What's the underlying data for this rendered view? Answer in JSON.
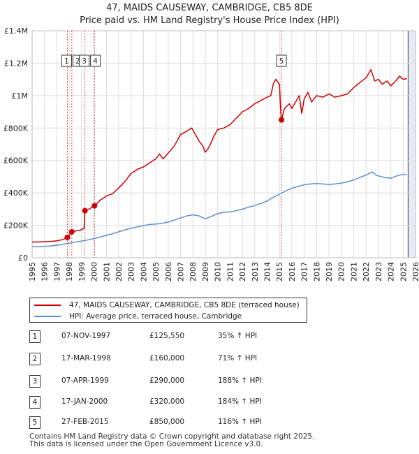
{
  "title": "47, MAIDS CAUSEWAY, CAMBRIDGE, CB5 8DE",
  "subtitle": "Price paid vs. HM Land Registry's House Price Index (HPI)",
  "colors": {
    "property": "#cc0000",
    "hpi": "#5b8fd0",
    "shade": "#e8eef8",
    "grid": "#dddddd",
    "marker": "#cc0000"
  },
  "chart_data": {
    "type": "line",
    "title": "47, MAIDS CAUSEWAY, CAMBRIDGE, CB5 8DE",
    "xlim": [
      1995,
      2026
    ],
    "ylim": [
      0,
      1400000
    ],
    "x_ticks": [
      1995,
      1996,
      1997,
      1998,
      1999,
      2000,
      2001,
      2002,
      2003,
      2004,
      2005,
      2006,
      2007,
      2008,
      2009,
      2010,
      2011,
      2012,
      2013,
      2014,
      2015,
      2016,
      2017,
      2018,
      2019,
      2020,
      2021,
      2022,
      2023,
      2024,
      2025,
      2026
    ],
    "y_ticks": [
      {
        "value": 0,
        "label": "£0"
      },
      {
        "value": 200000,
        "label": "£200K"
      },
      {
        "value": 400000,
        "label": "£400K"
      },
      {
        "value": 600000,
        "label": "£600K"
      },
      {
        "value": 800000,
        "label": "£800K"
      },
      {
        "value": 1000000,
        "label": "£1M"
      },
      {
        "value": 1200000,
        "label": "£1.2M"
      },
      {
        "value": 1400000,
        "label": "£1.4M"
      }
    ],
    "shaded_future_from": 2025.4,
    "series": [
      {
        "name": "47, MAIDS CAUSEWAY, CAMBRIDGE, CB5 8DE (terraced house)",
        "color": "#cc0000",
        "points": [
          [
            1995.0,
            97000
          ],
          [
            1995.5,
            97000
          ],
          [
            1996.0,
            99000
          ],
          [
            1996.5,
            101000
          ],
          [
            1997.0,
            104000
          ],
          [
            1997.5,
            113000
          ],
          [
            1997.85,
            125550
          ],
          [
            1998.0,
            140000
          ],
          [
            1998.21,
            160000
          ],
          [
            1998.5,
            165000
          ],
          [
            1998.9,
            170000
          ],
          [
            1999.0,
            175000
          ],
          [
            1999.2,
            180000
          ],
          [
            1999.27,
            290000
          ],
          [
            1999.6,
            300000
          ],
          [
            2000.04,
            320000
          ],
          [
            2000.5,
            355000
          ],
          [
            2001.0,
            380000
          ],
          [
            2001.5,
            395000
          ],
          [
            2002.0,
            430000
          ],
          [
            2002.5,
            470000
          ],
          [
            2003.0,
            520000
          ],
          [
            2003.5,
            545000
          ],
          [
            2004.0,
            560000
          ],
          [
            2004.5,
            585000
          ],
          [
            2005.0,
            610000
          ],
          [
            2005.3,
            640000
          ],
          [
            2005.6,
            610000
          ],
          [
            2006.0,
            645000
          ],
          [
            2006.5,
            690000
          ],
          [
            2007.0,
            760000
          ],
          [
            2007.5,
            780000
          ],
          [
            2007.9,
            800000
          ],
          [
            2008.2,
            760000
          ],
          [
            2008.5,
            720000
          ],
          [
            2008.8,
            690000
          ],
          [
            2009.0,
            650000
          ],
          [
            2009.3,
            680000
          ],
          [
            2009.7,
            750000
          ],
          [
            2010.0,
            790000
          ],
          [
            2010.5,
            800000
          ],
          [
            2011.0,
            820000
          ],
          [
            2011.5,
            860000
          ],
          [
            2012.0,
            900000
          ],
          [
            2012.5,
            920000
          ],
          [
            2013.0,
            950000
          ],
          [
            2013.5,
            970000
          ],
          [
            2014.0,
            990000
          ],
          [
            2014.3,
            1000000
          ],
          [
            2014.5,
            1070000
          ],
          [
            2014.7,
            1100000
          ],
          [
            2014.9,
            1080000
          ],
          [
            2015.0,
            1070000
          ],
          [
            2015.1,
            900000
          ],
          [
            2015.16,
            850000
          ],
          [
            2015.4,
            920000
          ],
          [
            2015.8,
            950000
          ],
          [
            2016.0,
            920000
          ],
          [
            2016.3,
            960000
          ],
          [
            2016.6,
            1000000
          ],
          [
            2016.8,
            890000
          ],
          [
            2017.0,
            980000
          ],
          [
            2017.3,
            1020000
          ],
          [
            2017.6,
            960000
          ],
          [
            2018.0,
            1000000
          ],
          [
            2018.5,
            990000
          ],
          [
            2019.0,
            1010000
          ],
          [
            2019.5,
            990000
          ],
          [
            2020.0,
            1000000
          ],
          [
            2020.5,
            1010000
          ],
          [
            2021.0,
            1050000
          ],
          [
            2021.5,
            1080000
          ],
          [
            2022.0,
            1110000
          ],
          [
            2022.4,
            1160000
          ],
          [
            2022.7,
            1090000
          ],
          [
            2023.0,
            1100000
          ],
          [
            2023.3,
            1070000
          ],
          [
            2023.7,
            1090000
          ],
          [
            2024.0,
            1060000
          ],
          [
            2024.4,
            1090000
          ],
          [
            2024.7,
            1120000
          ],
          [
            2025.0,
            1100000
          ],
          [
            2025.3,
            1105000
          ]
        ]
      },
      {
        "name": "HPI: Average price, terraced house, Cambridge",
        "color": "#5b8fd0",
        "points": [
          [
            1995.0,
            68000
          ],
          [
            1995.5,
            68500
          ],
          [
            1996.0,
            70000
          ],
          [
            1996.5,
            73000
          ],
          [
            1997.0,
            77000
          ],
          [
            1997.5,
            83000
          ],
          [
            1998.0,
            90000
          ],
          [
            1998.5,
            97000
          ],
          [
            1999.0,
            103000
          ],
          [
            1999.5,
            110000
          ],
          [
            2000.0,
            118000
          ],
          [
            2000.5,
            128000
          ],
          [
            2001.0,
            138000
          ],
          [
            2001.5,
            148000
          ],
          [
            2002.0,
            160000
          ],
          [
            2002.5,
            172000
          ],
          [
            2003.0,
            182000
          ],
          [
            2003.5,
            190000
          ],
          [
            2004.0,
            198000
          ],
          [
            2004.5,
            205000
          ],
          [
            2005.0,
            208000
          ],
          [
            2005.5,
            212000
          ],
          [
            2006.0,
            220000
          ],
          [
            2006.5,
            232000
          ],
          [
            2007.0,
            245000
          ],
          [
            2007.5,
            258000
          ],
          [
            2008.0,
            265000
          ],
          [
            2008.5,
            258000
          ],
          [
            2009.0,
            240000
          ],
          [
            2009.5,
            255000
          ],
          [
            2010.0,
            272000
          ],
          [
            2010.5,
            280000
          ],
          [
            2011.0,
            282000
          ],
          [
            2011.5,
            290000
          ],
          [
            2012.0,
            300000
          ],
          [
            2012.5,
            312000
          ],
          [
            2013.0,
            322000
          ],
          [
            2013.5,
            335000
          ],
          [
            2014.0,
            350000
          ],
          [
            2014.5,
            372000
          ],
          [
            2015.0,
            392000
          ],
          [
            2015.5,
            412000
          ],
          [
            2016.0,
            428000
          ],
          [
            2016.5,
            440000
          ],
          [
            2017.0,
            450000
          ],
          [
            2017.5,
            455000
          ],
          [
            2018.0,
            458000
          ],
          [
            2018.5,
            455000
          ],
          [
            2019.0,
            452000
          ],
          [
            2019.5,
            455000
          ],
          [
            2020.0,
            460000
          ],
          [
            2020.5,
            468000
          ],
          [
            2021.0,
            480000
          ],
          [
            2021.5,
            495000
          ],
          [
            2022.0,
            510000
          ],
          [
            2022.5,
            530000
          ],
          [
            2022.8,
            510000
          ],
          [
            2023.0,
            505000
          ],
          [
            2023.5,
            495000
          ],
          [
            2024.0,
            490000
          ],
          [
            2024.5,
            505000
          ],
          [
            2025.0,
            515000
          ],
          [
            2025.3,
            510000
          ]
        ]
      }
    ],
    "sales": [
      {
        "id": "1",
        "year": 1997.85,
        "price": 125550
      },
      {
        "id": "2",
        "year": 1998.21,
        "price": 160000
      },
      {
        "id": "3",
        "year": 1999.27,
        "price": 290000
      },
      {
        "id": "4",
        "year": 2000.04,
        "price": 320000
      },
      {
        "id": "5",
        "year": 2015.16,
        "price": 850000
      }
    ],
    "callout_rows": [
      {
        "ids": [
          "1",
          "2"
        ]
      },
      {
        "ids": [
          "3",
          "4"
        ]
      },
      {
        "ids": [
          "5"
        ]
      }
    ]
  },
  "legend": {
    "property_label": "47, MAIDS CAUSEWAY, CAMBRIDGE, CB5 8DE (terraced house)",
    "hpi_label": "HPI: Average price, terraced house, Cambridge"
  },
  "table": [
    {
      "num": "1",
      "date": "07-NOV-1997",
      "price": "£125,550",
      "hpi": "35% ↑ HPI"
    },
    {
      "num": "2",
      "date": "17-MAR-1998",
      "price": "£160,000",
      "hpi": "71% ↑ HPI"
    },
    {
      "num": "3",
      "date": "07-APR-1999",
      "price": "£290,000",
      "hpi": "188% ↑ HPI"
    },
    {
      "num": "4",
      "date": "17-JAN-2000",
      "price": "£320,000",
      "hpi": "184% ↑ HPI"
    },
    {
      "num": "5",
      "date": "27-FEB-2015",
      "price": "£850,000",
      "hpi": "116% ↑ HPI"
    }
  ],
  "footer": {
    "line1": "Contains HM Land Registry data © Crown copyright and database right 2025.",
    "line2": "This data is licensed under the Open Government Licence v3.0."
  }
}
